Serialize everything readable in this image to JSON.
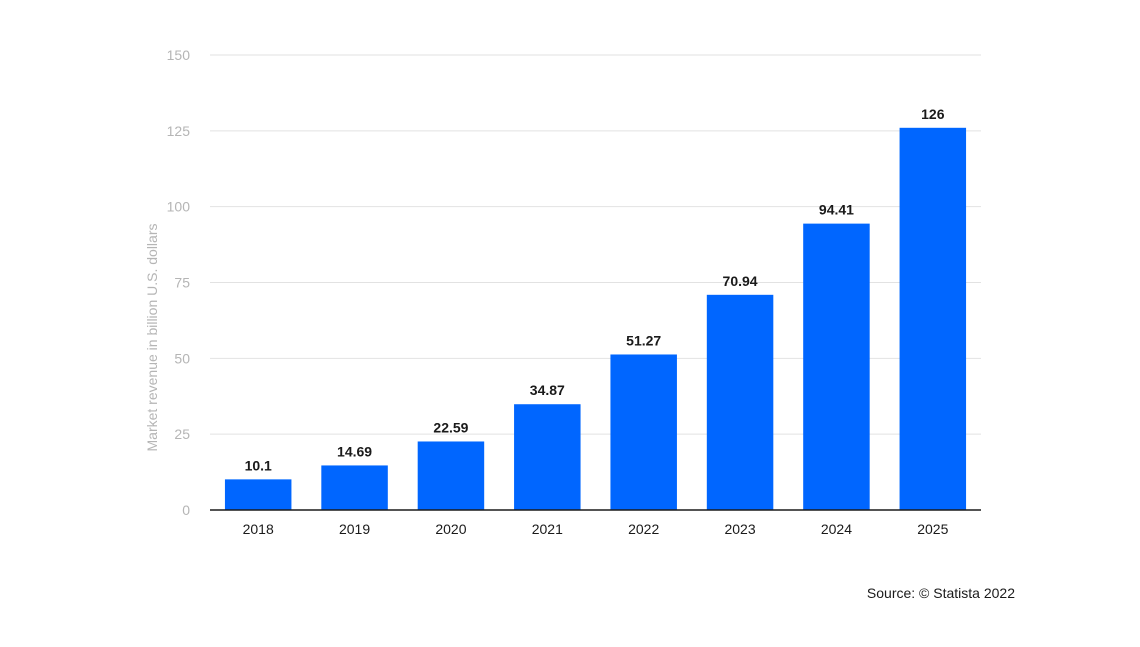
{
  "chart_data": {
    "type": "bar",
    "categories": [
      "2018",
      "2019",
      "2020",
      "2021",
      "2022",
      "2023",
      "2024",
      "2025"
    ],
    "values": [
      10.1,
      14.69,
      22.59,
      34.87,
      51.27,
      70.94,
      94.41,
      126
    ],
    "value_labels": [
      "10.1",
      "14.69",
      "22.59",
      "34.87",
      "51.27",
      "70.94",
      "94.41",
      "126"
    ],
    "title": "",
    "xlabel": "",
    "ylabel": "Market revenue in billion U.S. dollars",
    "ylim": [
      0,
      150
    ],
    "yticks": [
      0,
      25,
      50,
      75,
      100,
      125,
      150
    ],
    "grid": true,
    "bar_color": "#0066ff"
  },
  "source": "Source: © Statista 2022"
}
